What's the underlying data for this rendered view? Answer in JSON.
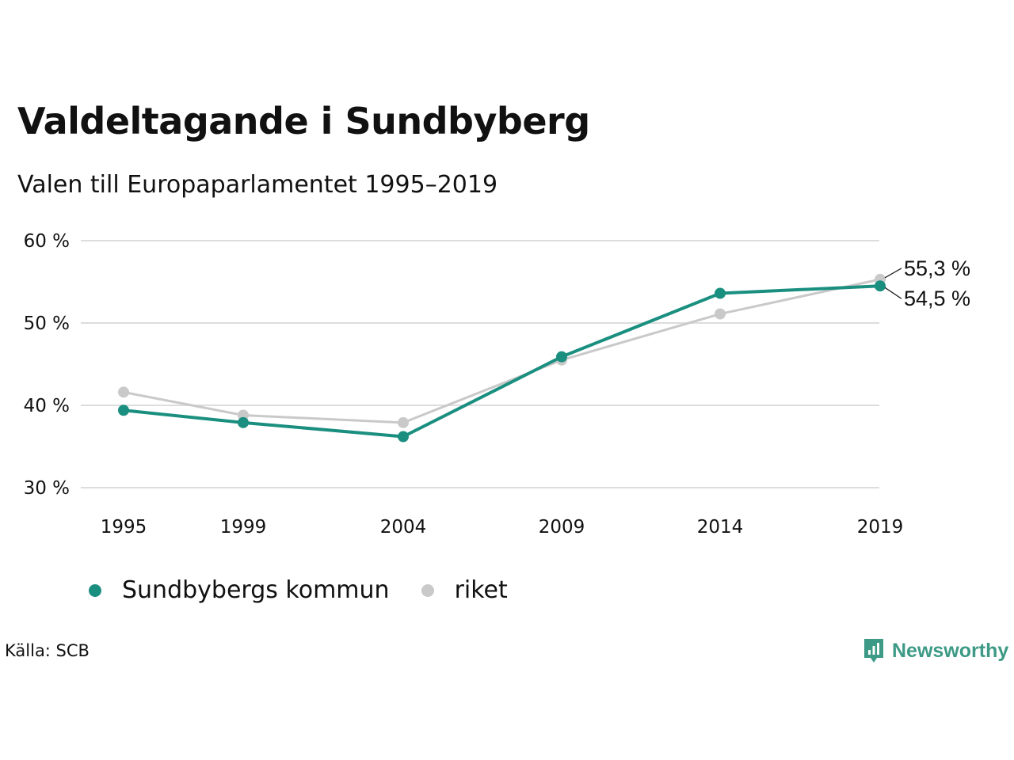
{
  "title": "Valdeltagande i Sundbyberg",
  "subtitle": "Valen till Europaparlamentet 1995–2019",
  "source": "Källa: SCB",
  "brand": "Newsworthy",
  "colors": {
    "teal": "#1a8f80",
    "gray": "#c9c9c9",
    "grid": "#dddddd",
    "brand": "#3d9a86"
  },
  "chart_data": {
    "type": "line",
    "x": [
      1995,
      1999,
      2004,
      2009,
      2014,
      2019
    ],
    "ylim": [
      30,
      60
    ],
    "yticks": [
      30,
      40,
      50,
      60
    ],
    "ytick_labels": [
      "30 %",
      "40 %",
      "50 %",
      "60 %"
    ],
    "xtick_labels": [
      "1995",
      "1999",
      "2004",
      "2009",
      "2014",
      "2019"
    ],
    "grid": true,
    "legend_position": "bottom",
    "series": [
      {
        "name": "Sundbybergs kommun",
        "color": "#1a8f80",
        "values": [
          39.4,
          37.9,
          36.2,
          45.9,
          53.6,
          54.5
        ],
        "end_label": "54,5 %"
      },
      {
        "name": "riket",
        "color": "#c9c9c9",
        "values": [
          41.6,
          38.8,
          37.9,
          45.5,
          51.1,
          55.3
        ],
        "end_label": "55,3 %"
      }
    ]
  }
}
